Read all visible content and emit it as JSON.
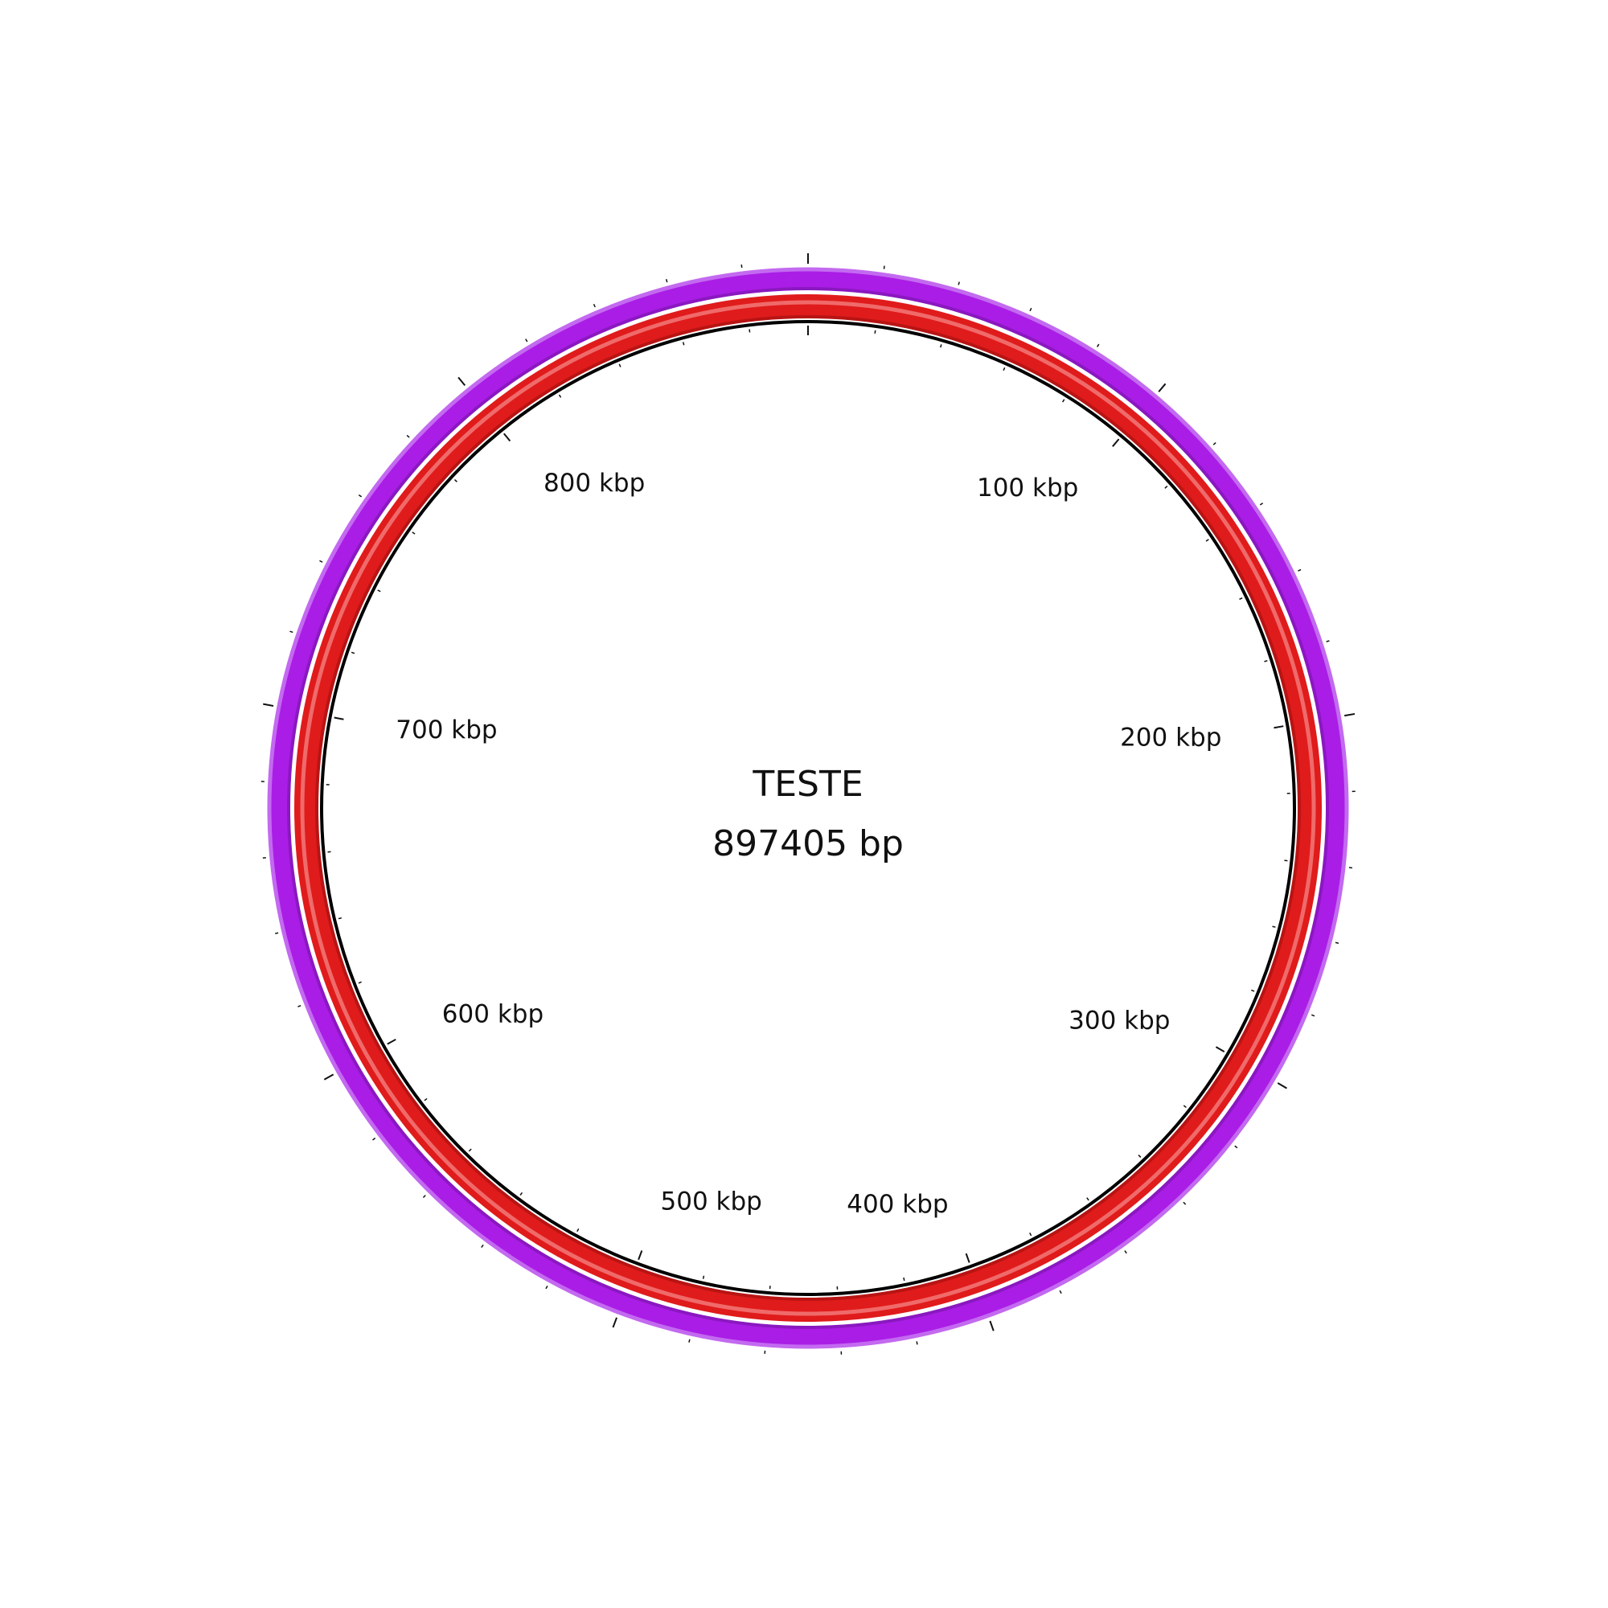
{
  "genome_map": {
    "name": "TESTE",
    "length_label": "897405 bp",
    "length_bp": 897405,
    "major_tick_step_bp": 100000,
    "minor_tick_step_bp": 20000,
    "tick_labels": [
      {
        "bp": 100000,
        "text": "100 kbp"
      },
      {
        "bp": 200000,
        "text": "200 kbp"
      },
      {
        "bp": 300000,
        "text": "300 kbp"
      },
      {
        "bp": 400000,
        "text": "400 kbp"
      },
      {
        "bp": 500000,
        "text": "500 kbp"
      },
      {
        "bp": 600000,
        "text": "600 kbp"
      },
      {
        "bp": 700000,
        "text": "700 kbp"
      },
      {
        "bp": 800000,
        "text": "800 kbp"
      }
    ],
    "colors": {
      "outer_ring": "#aa1de6",
      "outer_ring_edge": "#c36af0",
      "outer_ring_inner": "#8a18c0",
      "inner_ring": "#e01b1b",
      "inner_ring_inner": "#b81414",
      "inner_ring_highlight": "#f06a6a",
      "backbone": "#000000",
      "ticks": "#111111"
    }
  }
}
